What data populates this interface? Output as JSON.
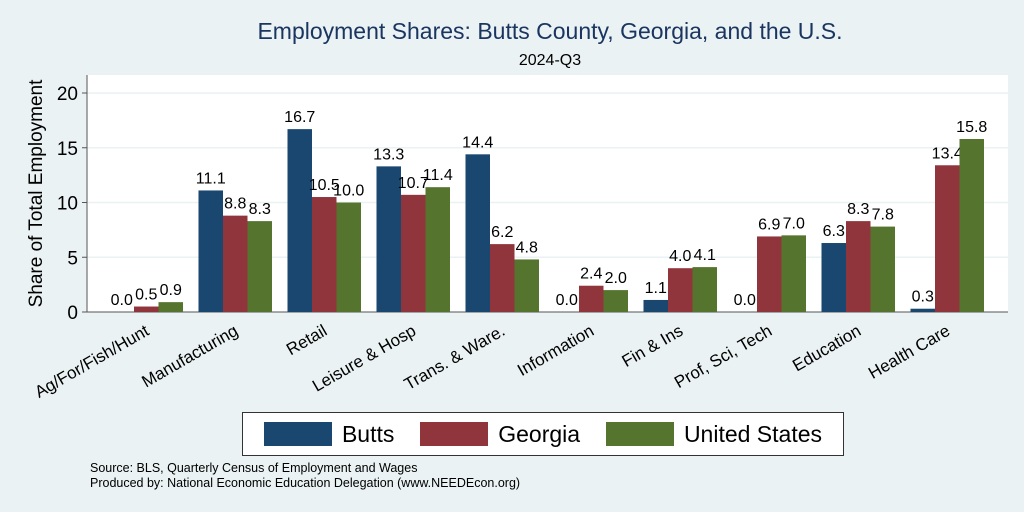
{
  "chart_data": {
    "type": "bar",
    "title": "Employment Shares: Butts County, Georgia, and the U.S.",
    "subtitle": "2024-Q3",
    "xlabel": "",
    "ylabel": "Share of Total Employment",
    "ylim": [
      0,
      21.5
    ],
    "yticks": [
      0,
      5,
      10,
      15,
      20
    ],
    "grid": true,
    "legend_position": "bottom",
    "categories": [
      "Ag/For/Fish/Hunt",
      "Manufacturing",
      "Retail",
      "Leisure & Hosp",
      "Trans. & Ware.",
      "Information",
      "Fin & Ins",
      "Prof, Sci, Tech",
      "Education",
      "Health Care"
    ],
    "series": [
      {
        "name": "Butts",
        "color": "#1a476f",
        "values": [
          0.0,
          11.1,
          16.7,
          13.3,
          14.4,
          0.0,
          1.1,
          0.0,
          6.3,
          0.3
        ]
      },
      {
        "name": "Georgia",
        "color": "#90353b",
        "values": [
          0.5,
          8.8,
          10.5,
          10.7,
          6.2,
          2.4,
          4.0,
          6.9,
          8.3,
          13.4
        ]
      },
      {
        "name": "United States",
        "color": "#55752f",
        "values": [
          0.9,
          8.3,
          10.0,
          11.4,
          4.8,
          2.0,
          4.1,
          7.0,
          7.8,
          15.8
        ]
      }
    ]
  },
  "notes": {
    "source": "Source: BLS, Quarterly Census of Employment and Wages",
    "produced": "Produced by: National Economic Education Delegation (www.NEEDEcon.org)"
  }
}
